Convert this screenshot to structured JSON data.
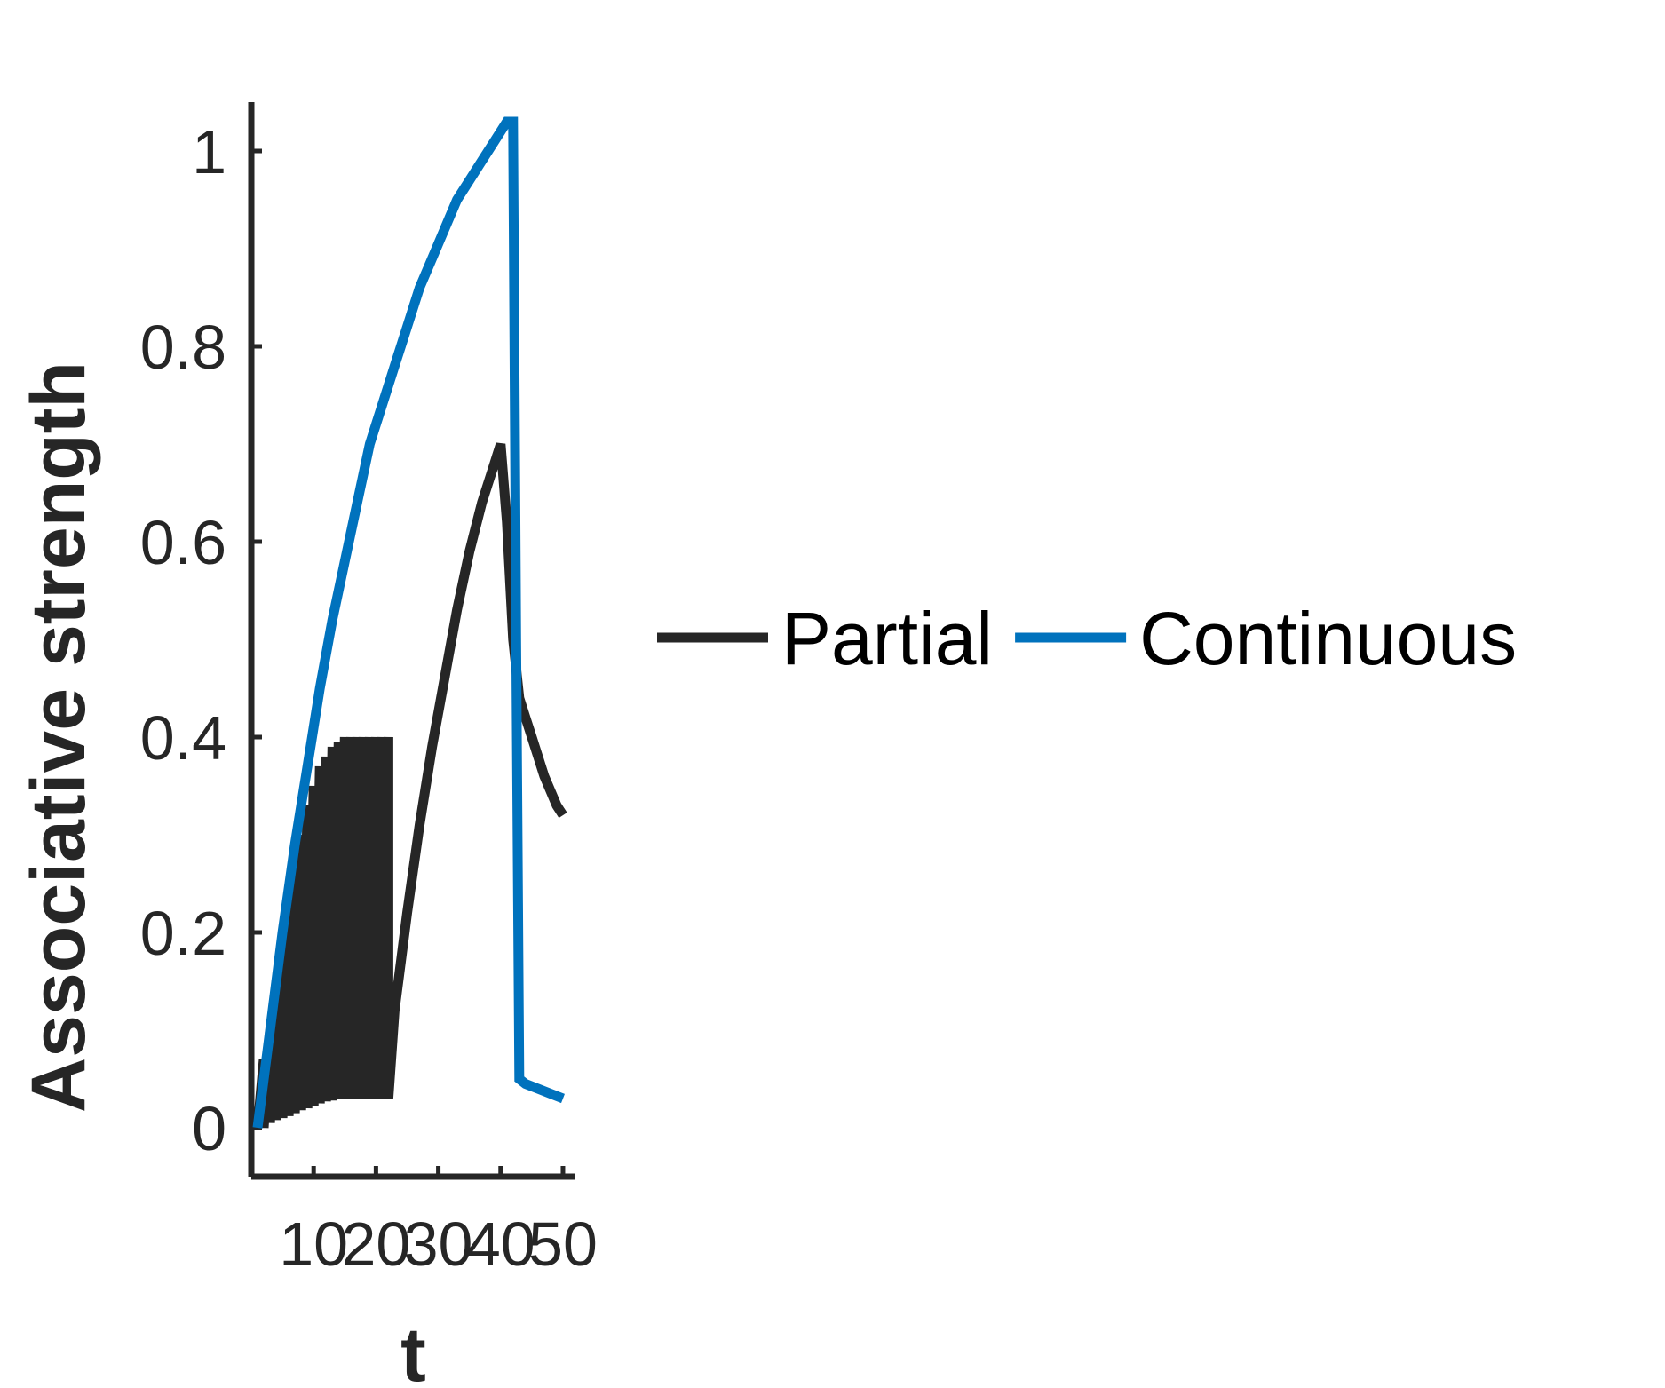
{
  "chart_data": {
    "type": "line",
    "title": "",
    "xlabel": "t",
    "ylabel": "Associative strength",
    "xlim": [
      0,
      52
    ],
    "ylim": [
      -0.05,
      1.05
    ],
    "xticks": [
      10,
      20,
      30,
      40,
      50
    ],
    "xtick_labels": [
      "10",
      "20",
      "30",
      "40",
      "50"
    ],
    "yticks": [
      0,
      0.2,
      0.4,
      0.6,
      0.8,
      1
    ],
    "ytick_labels": [
      "0",
      "0.2",
      "0.4",
      "0.6",
      "0.8",
      "1"
    ],
    "grid": false,
    "legend": {
      "position": "outside-right",
      "orientation": "horizontal"
    },
    "series": [
      {
        "name": "Partial",
        "color": "#262626",
        "x": [
          1,
          2,
          2,
          3,
          3,
          4,
          4,
          5,
          5,
          6,
          6,
          7,
          7,
          8,
          8,
          9,
          9,
          10,
          10,
          11,
          11,
          12,
          12,
          13,
          13,
          14,
          14,
          15,
          15,
          16,
          16,
          17,
          17,
          18,
          18,
          19,
          19,
          20,
          20,
          21,
          21,
          22,
          22,
          23,
          25,
          27,
          29,
          31,
          33,
          35,
          37,
          39,
          40,
          41,
          42,
          43,
          44,
          45,
          46,
          47,
          48,
          49,
          50
        ],
        "y": [
          0,
          0.07,
          0,
          0.1,
          0.005,
          0.15,
          0.008,
          0.19,
          0.01,
          0.23,
          0.012,
          0.27,
          0.015,
          0.3,
          0.018,
          0.33,
          0.02,
          0.35,
          0.022,
          0.37,
          0.025,
          0.38,
          0.027,
          0.39,
          0.028,
          0.395,
          0.03,
          0.4,
          0.03,
          0.4,
          0.03,
          0.4,
          0.03,
          0.4,
          0.03,
          0.4,
          0.03,
          0.4,
          0.03,
          0.4,
          0.03,
          0.4,
          0.03,
          0.12,
          0.22,
          0.31,
          0.39,
          0.46,
          0.53,
          0.59,
          0.64,
          0.68,
          0.7,
          0.62,
          0.5,
          0.44,
          0.42,
          0.4,
          0.38,
          0.36,
          0.345,
          0.33,
          0.32
        ]
      },
      {
        "name": "Continuous",
        "color": "#0072BD",
        "x": [
          1,
          3,
          5,
          7,
          9,
          11,
          13,
          15,
          17,
          19,
          21,
          23,
          25,
          27,
          29,
          31,
          33,
          35,
          37,
          39,
          41,
          42,
          42.5,
          43,
          44,
          46,
          48,
          50
        ],
        "y": [
          0,
          0.1,
          0.2,
          0.29,
          0.37,
          0.45,
          0.52,
          0.58,
          0.64,
          0.7,
          0.74,
          0.78,
          0.82,
          0.86,
          0.89,
          0.92,
          0.95,
          0.97,
          0.99,
          1.01,
          1.03,
          1.03,
          0.5,
          0.05,
          0.045,
          0.04,
          0.035,
          0.03
        ]
      }
    ]
  }
}
